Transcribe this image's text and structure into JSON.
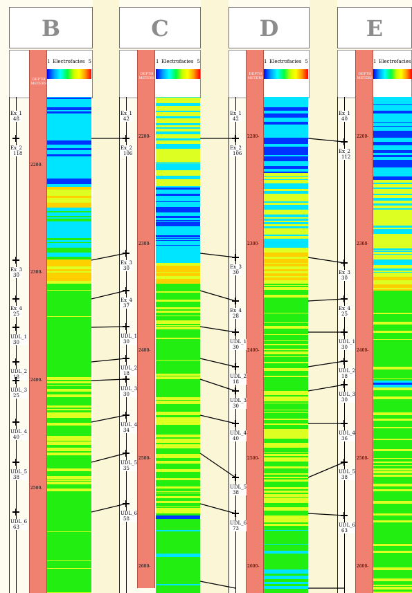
{
  "scale": {
    "min": "1",
    "label": "Electrofacies",
    "max": "5"
  },
  "wells": [
    {
      "letter": "B",
      "depth_label": "DEPTH METERS",
      "depth_ticks": [
        "2200",
        "2300",
        "2400",
        "2500"
      ],
      "zones": [
        "Ex_1",
        "Ex_2",
        "Ex_3",
        "Ex_4",
        "UDL_1",
        "UDL_2",
        "UDL_3",
        "UDL_4",
        "UDL_5",
        "UDL_6"
      ],
      "zone_values": [
        "48",
        "118",
        "30",
        "25",
        "30",
        "18",
        "25",
        "40",
        "38",
        "63"
      ]
    },
    {
      "letter": "C",
      "depth_label": "DEPTH METERS",
      "depth_ticks": [
        "2200",
        "2300",
        "2400",
        "2500",
        "2600"
      ],
      "zones": [
        "Ex_1",
        "Ex_2",
        "Ex_3",
        "Ex_4",
        "UDL_1",
        "UDL_2",
        "UDL_3",
        "UDL_4",
        "UDL_5",
        "UDL_6"
      ],
      "zone_values": [
        "42",
        "106",
        "30",
        "37",
        "30",
        "18",
        "30",
        "34",
        "35",
        "58"
      ]
    },
    {
      "letter": "D",
      "depth_label": "DEPTH METERS",
      "depth_ticks": [
        "2200",
        "2300",
        "2400",
        "2500",
        "2600"
      ],
      "zones": [
        "Ex_1",
        "Ex_2",
        "Ex_3",
        "Ex_4",
        "UDL_1",
        "UDL_2",
        "UDL_3",
        "UDL_4",
        "UDL_5",
        "UDL_6"
      ],
      "zone_values": [
        "42",
        "106",
        "30",
        "28",
        "30",
        "18",
        "30",
        "40",
        "38",
        "73"
      ]
    },
    {
      "letter": "E",
      "depth_label": "DEPTH METERS",
      "depth_ticks": [
        "2200",
        "2300",
        "2400",
        "2500",
        "2600"
      ],
      "zones": [
        "Ex_1",
        "Ex_2",
        "Ex_3",
        "Ex_4",
        "UDL_1",
        "UDL_2",
        "UDL_3",
        "UDL_4",
        "UDL_5",
        "UDL_6"
      ],
      "zone_values": [
        "40",
        "112",
        "30",
        "25",
        "30",
        "18",
        "30",
        "36",
        "38",
        "63"
      ]
    }
  ],
  "colors": {
    "depth_track": "#f08070",
    "facies_1": "#0033ff",
    "facies_2": "#00e5ff",
    "facies_3": "#22ee11",
    "facies_4": "#ddff22",
    "facies_5": "#ffd000",
    "correlation_line": "#000000"
  }
}
